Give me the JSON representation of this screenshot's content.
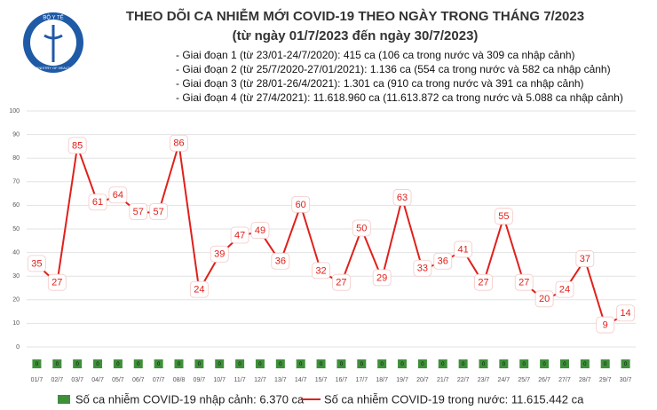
{
  "header": {
    "logo_text": "BỘ Y TẾ",
    "logo_subtext": "MINISTRY OF HEALTH",
    "title": "THEO DÕI CA NHIỄM MỚI COVID-19 THEO NGÀY TRONG THÁNG 7/2023",
    "subtitle": "(từ ngày 01/7/2023 đến ngày 30/7/2023)",
    "notes": [
      "- Giai đoạn 1 (từ 23/01-24/7/2020): 415 ca (106 ca trong nước và 309 ca nhập cảnh)",
      "- Giai đoạn 2 (từ 25/7/2020-27/01/2021): 1.136 ca (554 ca trong nước và 582 ca nhập cảnh)",
      "- Giai đoạn 3 (từ 28/01-26/4/2021): 1.301 ca (910 ca trong nước và 391 ca nhập cảnh)",
      "- Giai đoạn 4 (từ 27/4/2021): 11.618.960 ca (11.613.872 ca trong nước và 5.088 ca nhập cảnh)"
    ]
  },
  "chart_data": {
    "type": "line",
    "categories": [
      "01/7",
      "02/7",
      "03/7",
      "04/7",
      "05/7",
      "06/7",
      "07/7",
      "08/8",
      "09/7",
      "10/7",
      "11/7",
      "12/7",
      "13/7",
      "14/7",
      "15/7",
      "16/7",
      "17/7",
      "18/7",
      "19/7",
      "20/7",
      "21/7",
      "22/7",
      "23/7",
      "24/7",
      "25/7",
      "26/7",
      "27/7",
      "28/7",
      "29/7",
      "30/7"
    ],
    "series": [
      {
        "name": "Số ca nhiễm COVID-19 nhập cảnh: 6.370 ca",
        "type": "bar",
        "color": "#3f8f3a",
        "values": [
          0,
          0,
          0,
          0,
          0,
          0,
          0,
          0,
          0,
          0,
          0,
          0,
          0,
          0,
          0,
          0,
          0,
          0,
          0,
          0,
          0,
          0,
          0,
          0,
          0,
          0,
          0,
          0,
          0,
          0
        ]
      },
      {
        "name": "Số ca nhiễm COVID-19 trong nước: 11.615.442 ca",
        "type": "line",
        "color": "#e0201b",
        "values": [
          35,
          27,
          85,
          61,
          64,
          57,
          57,
          86,
          24,
          39,
          47,
          49,
          36,
          60,
          32,
          27,
          50,
          29,
          63,
          33,
          36,
          41,
          27,
          55,
          27,
          20,
          24,
          37,
          9,
          14
        ]
      }
    ],
    "ylim": [
      0,
      100
    ],
    "yticks": [
      0,
      10,
      20,
      30,
      40,
      50,
      60,
      70,
      80,
      90,
      100
    ],
    "grid": true
  }
}
